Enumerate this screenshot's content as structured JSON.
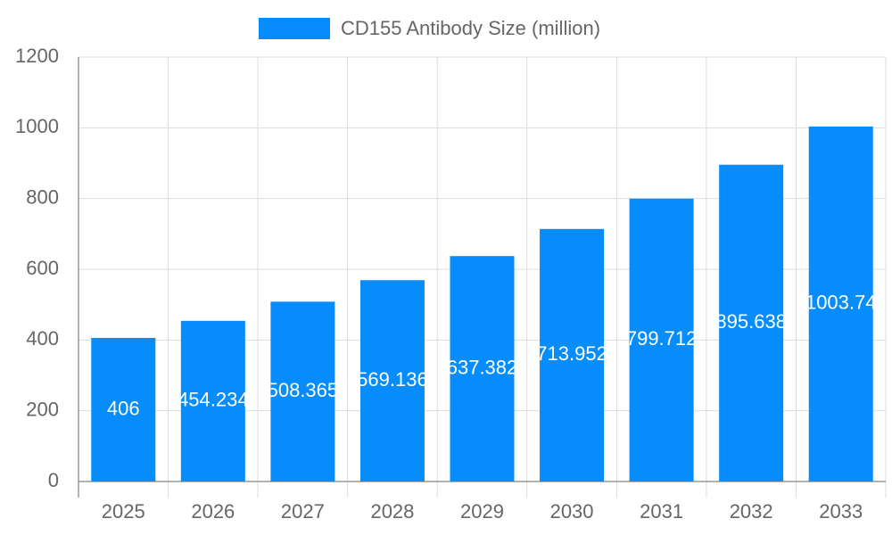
{
  "chart_data": {
    "type": "bar",
    "categories": [
      "2025",
      "2026",
      "2027",
      "2028",
      "2029",
      "2030",
      "2031",
      "2032",
      "2033"
    ],
    "series": [
      {
        "name": "CD155 Antibody Size (million)",
        "color": "#068dfb",
        "values": [
          406,
          454.234,
          508.365,
          569.136,
          637.382,
          713.952,
          799.712,
          895.638,
          1003.74
        ]
      }
    ],
    "ylim": [
      0,
      1200
    ],
    "yticks": [
      0,
      200,
      400,
      600,
      800,
      1000,
      1200
    ],
    "grid": true,
    "legend": "top"
  }
}
